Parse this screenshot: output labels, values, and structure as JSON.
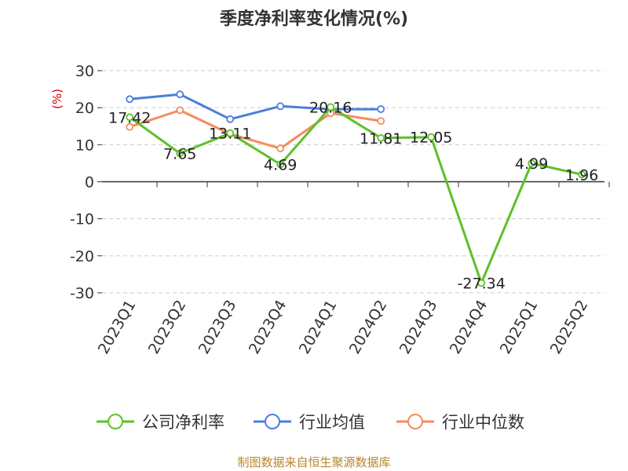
{
  "chart_data": {
    "type": "line",
    "title": "季度净利率变化情况(%)",
    "ylabel": "(%)",
    "xlabel": "",
    "categories": [
      "2023Q1",
      "2023Q2",
      "2023Q3",
      "2023Q4",
      "2024Q1",
      "2024Q2",
      "2024Q3",
      "2024Q4",
      "2025Q1",
      "2025Q2"
    ],
    "yticks": [
      30,
      20,
      10,
      0,
      -10,
      -20,
      -30
    ],
    "ylim": [
      -30,
      30
    ],
    "grid": true,
    "legend_position": "bottom",
    "series": [
      {
        "name": "公司净利率",
        "color": "#5cc12a",
        "values": [
          17.42,
          7.65,
          13.11,
          4.69,
          20.16,
          11.81,
          12.05,
          -27.34,
          4.99,
          1.96
        ],
        "labels": [
          "17.42",
          "7.65",
          "13.11",
          "4.69",
          "20.16",
          "11.81",
          "12.05",
          "-27.34",
          "4.99",
          "1.96"
        ]
      },
      {
        "name": "行业均值",
        "color": "#4a7fdc",
        "values": [
          22.3,
          23.6,
          16.9,
          20.4,
          19.6,
          19.6,
          null,
          null,
          null,
          null
        ]
      },
      {
        "name": "行业中位数",
        "color": "#f48c5c",
        "values": [
          14.8,
          19.3,
          12.9,
          9.0,
          18.5,
          16.4,
          null,
          null,
          null,
          null
        ]
      }
    ]
  },
  "footer": {
    "source": "制图数据来自恒生聚源数据库",
    "source_color": "#b8862b"
  },
  "ylabel_color": "#cc0000"
}
